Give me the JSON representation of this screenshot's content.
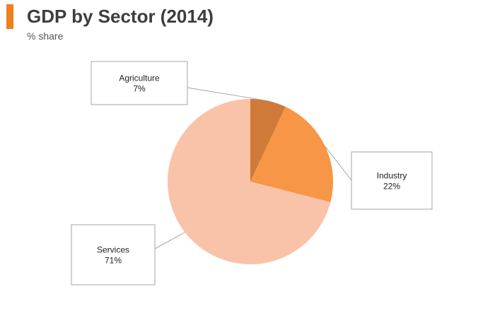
{
  "header": {
    "title": "GDP by Sector (2014)",
    "subtitle": "% share",
    "accent_color": "#f07f1e"
  },
  "chart_data": {
    "type": "pie",
    "title": "GDP by Sector (2014)",
    "subtitle": "% share",
    "slices": [
      {
        "name": "Agriculture",
        "value": 7,
        "label": "7%",
        "color": "#cf7a38"
      },
      {
        "name": "Industry",
        "value": 22,
        "label": "22%",
        "color": "#f79646"
      },
      {
        "name": "Services",
        "value": 71,
        "label": "71%",
        "color": "#f9c3a9"
      }
    ]
  }
}
